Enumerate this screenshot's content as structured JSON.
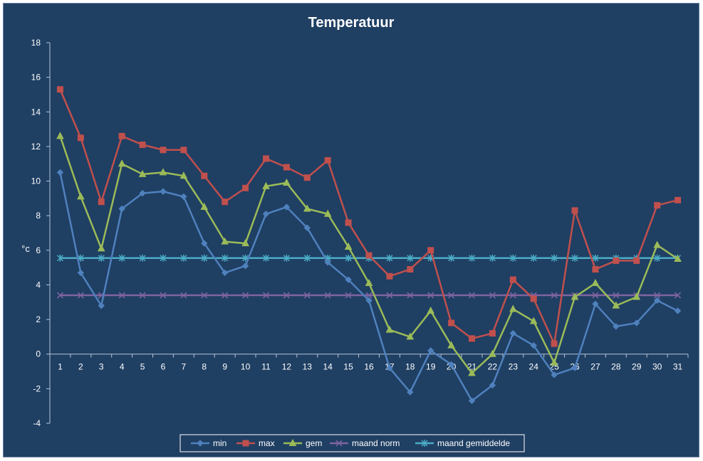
{
  "chart_data": {
    "type": "line",
    "title": "Temperatuur",
    "xlabel": "",
    "ylabel": "°c",
    "ylim": [
      -4,
      18
    ],
    "yticks": [
      18,
      16,
      14,
      12,
      10,
      8,
      6,
      4,
      2,
      0,
      -2,
      -4
    ],
    "ytick_labels": [
      "18",
      "16",
      "14",
      "12",
      "10",
      "8",
      "6",
      "4",
      "2",
      "0",
      "-2",
      "-4"
    ],
    "categories": [
      "1",
      "2",
      "3",
      "4",
      "5",
      "6",
      "7",
      "8",
      "9",
      "10",
      "11",
      "12",
      "13",
      "14",
      "15",
      "16",
      "17",
      "18",
      "19",
      "20",
      "21",
      "22",
      "23",
      "24",
      "25",
      "26",
      "27",
      "28",
      "29",
      "30",
      "31"
    ],
    "grid": false,
    "legend_position": "bottom",
    "series": [
      {
        "name": "min",
        "color": "#4f81bd",
        "marker": "diamond",
        "values": [
          10.5,
          4.7,
          2.8,
          8.4,
          9.3,
          9.4,
          9.1,
          6.4,
          4.7,
          5.1,
          8.1,
          8.5,
          7.3,
          5.3,
          4.3,
          3.1,
          -0.8,
          -2.2,
          0.2,
          -0.6,
          -2.7,
          -1.8,
          1.2,
          0.5,
          -1.2,
          -0.8,
          2.9,
          1.6,
          1.8,
          3.1,
          2.5
        ]
      },
      {
        "name": "max",
        "color": "#c0504d",
        "marker": "square",
        "values": [
          15.3,
          12.5,
          8.8,
          12.6,
          12.1,
          11.8,
          11.8,
          10.3,
          8.8,
          9.6,
          11.3,
          10.8,
          10.2,
          11.2,
          7.6,
          5.7,
          4.5,
          4.9,
          6.0,
          1.8,
          0.9,
          1.2,
          4.3,
          3.2,
          0.6,
          8.3,
          4.9,
          5.4,
          5.4,
          8.6,
          8.9
        ]
      },
      {
        "name": "gem",
        "color": "#9bbb59",
        "marker": "triangle",
        "values": [
          12.6,
          9.1,
          6.1,
          11.0,
          10.4,
          10.5,
          10.3,
          8.5,
          6.5,
          6.4,
          9.7,
          9.9,
          8.4,
          8.1,
          6.2,
          4.1,
          1.4,
          1.0,
          2.5,
          0.5,
          -1.1,
          0.0,
          2.6,
          1.9,
          -0.5,
          3.3,
          4.1,
          2.8,
          3.3,
          6.3,
          5.5
        ]
      },
      {
        "name": "maand norm",
        "color": "#8064a2",
        "marker": "x",
        "values": [
          3.4,
          3.4,
          3.4,
          3.4,
          3.4,
          3.4,
          3.4,
          3.4,
          3.4,
          3.4,
          3.4,
          3.4,
          3.4,
          3.4,
          3.4,
          3.4,
          3.4,
          3.4,
          3.4,
          3.4,
          3.4,
          3.4,
          3.4,
          3.4,
          3.4,
          3.4,
          3.4,
          3.4,
          3.4,
          3.4,
          3.4
        ]
      },
      {
        "name": "maand gemiddelde",
        "color": "#4bacc6",
        "marker": "star",
        "values": [
          5.55,
          5.55,
          5.55,
          5.55,
          5.55,
          5.55,
          5.55,
          5.55,
          5.55,
          5.55,
          5.55,
          5.55,
          5.55,
          5.55,
          5.55,
          5.55,
          5.55,
          5.55,
          5.55,
          5.55,
          5.55,
          5.55,
          5.55,
          5.55,
          5.55,
          5.55,
          5.55,
          5.55,
          5.55,
          5.55,
          5.55
        ]
      }
    ]
  }
}
